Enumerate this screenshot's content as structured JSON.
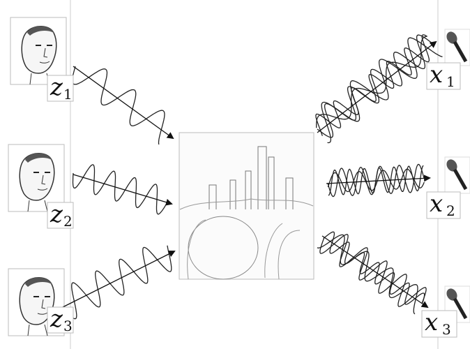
{
  "sources": [
    {
      "symbol": "z",
      "index": "1"
    },
    {
      "symbol": "z",
      "index": "2"
    },
    {
      "symbol": "z",
      "index": "3"
    }
  ],
  "mixtures": [
    {
      "symbol": "x",
      "index": "1"
    },
    {
      "symbol": "x",
      "index": "2"
    },
    {
      "symbol": "x",
      "index": "3"
    }
  ]
}
